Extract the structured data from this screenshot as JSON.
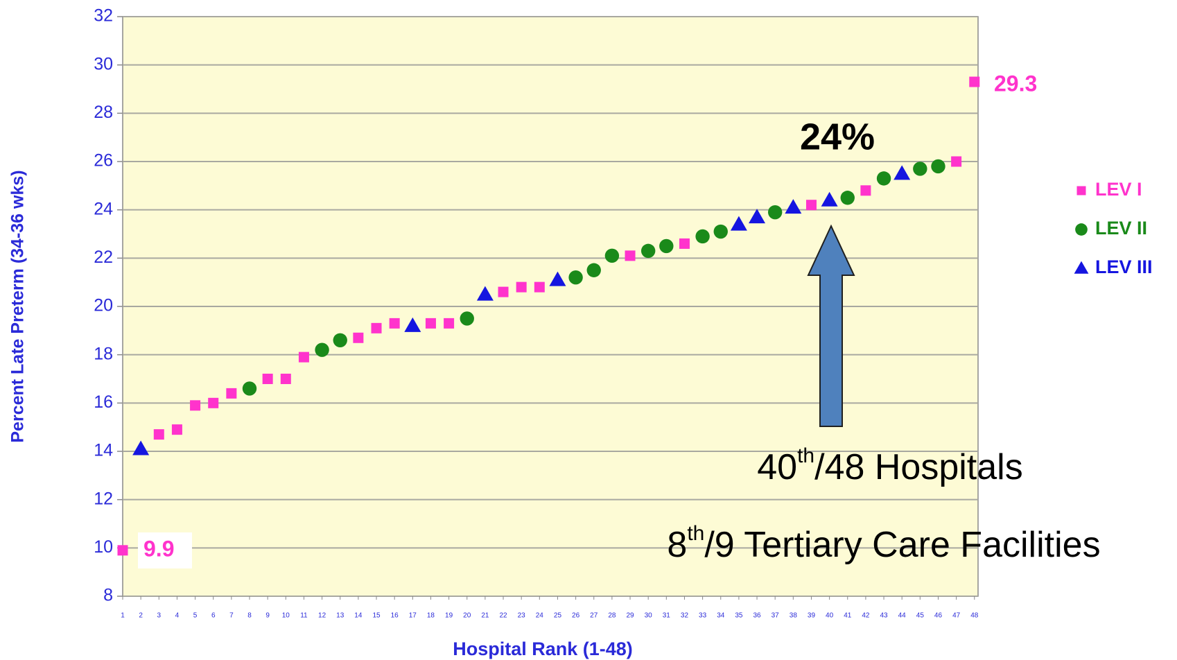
{
  "chart_data": {
    "type": "scatter",
    "ylabel": "Percent Late Preterm (34-36 wks)",
    "xlabel": "Hospital Rank (1-48)",
    "xlim": [
      1,
      48.2
    ],
    "xticks": [
      1,
      2,
      3,
      4,
      5,
      6,
      7,
      8,
      9,
      10,
      11,
      12,
      13,
      14,
      15,
      16,
      17,
      18,
      19,
      20,
      21,
      22,
      23,
      24,
      25,
      26,
      27,
      28,
      29,
      30,
      31,
      32,
      33,
      34,
      35,
      36,
      37,
      38,
      39,
      40,
      41,
      42,
      43,
      44,
      45,
      46,
      47,
      48
    ],
    "ylim": [
      8,
      32
    ],
    "yticks": [
      8,
      10,
      12,
      14,
      16,
      18,
      20,
      22,
      24,
      26,
      28,
      30,
      32
    ],
    "grid": true,
    "legend": "right",
    "series": [
      {
        "name": "LEV I",
        "color": "#ff33cc",
        "marker": "square",
        "x": [
          1,
          3,
          4,
          5,
          6,
          7,
          9,
          10,
          11,
          14,
          15,
          16,
          18,
          19,
          22,
          23,
          24,
          29,
          32,
          39,
          42,
          47,
          48
        ],
        "values": [
          9.9,
          14.7,
          14.9,
          15.9,
          16.0,
          16.4,
          17.0,
          17.0,
          17.9,
          18.7,
          19.1,
          19.3,
          19.3,
          19.3,
          20.6,
          20.8,
          20.8,
          22.1,
          22.6,
          24.2,
          24.8,
          26.0,
          29.3
        ]
      },
      {
        "name": "LEV II",
        "color": "#1a8a1a",
        "marker": "circle",
        "x": [
          8,
          12,
          13,
          20,
          26,
          27,
          28,
          30,
          31,
          33,
          34,
          37,
          41,
          43,
          45,
          46
        ],
        "values": [
          16.6,
          18.2,
          18.6,
          19.5,
          21.2,
          21.5,
          22.1,
          22.3,
          22.5,
          22.9,
          23.1,
          23.9,
          24.5,
          25.3,
          25.7,
          25.8
        ]
      },
      {
        "name": "LEV III",
        "color": "#1515e0",
        "marker": "triangle",
        "x": [
          2,
          17,
          21,
          25,
          35,
          36,
          38,
          40,
          44
        ],
        "values": [
          14.1,
          19.2,
          20.5,
          21.1,
          23.4,
          23.7,
          24.1,
          24.4,
          25.5
        ]
      }
    ],
    "annotations": [
      "9.9",
      "29.3",
      "24%"
    ],
    "rank_note": [
      "40",
      "th",
      "/48 Hospitals"
    ],
    "tertiary_note": [
      "8",
      "th",
      "/9 Tertiary Care Facilities"
    ]
  }
}
